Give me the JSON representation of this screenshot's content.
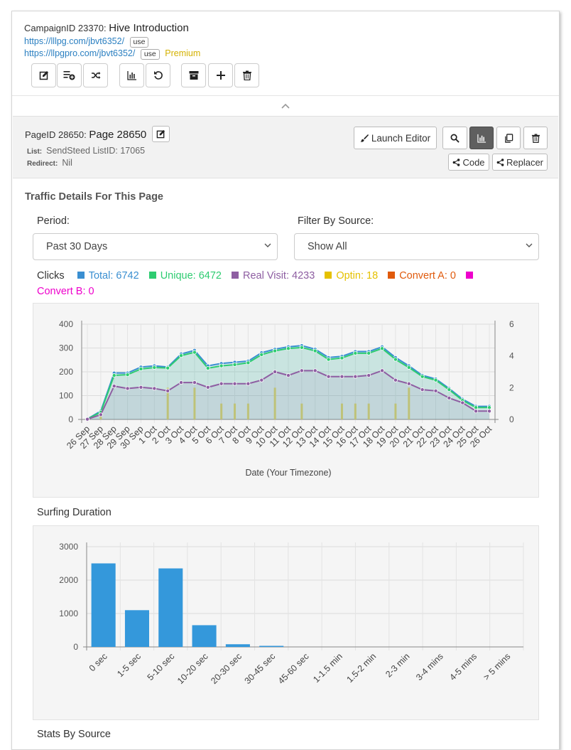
{
  "campaign": {
    "id_label": "CampaignID 23370:",
    "name": "Hive Introduction",
    "url1": "https://lllpg.com/jbvt6352/",
    "url2": "https://llpgpro.com/jbvt6352/",
    "use_label": "use",
    "premium": "Premium",
    "toolbar": [
      "edit-icon",
      "add-list-icon",
      "shuffle-icon",
      "stats-icon",
      "undo-icon",
      "archive-icon",
      "plus-icon",
      "trash-icon"
    ]
  },
  "page": {
    "id_label": "PageID 28650:",
    "name": "Page 28650",
    "list_label": "List:",
    "list_value": "SendSteed ListID: 17065",
    "redirect_label": "Redirect:",
    "redirect_value": "Nil",
    "launch_editor": "Launch Editor",
    "code": "Code",
    "replacer": "Replacer"
  },
  "traffic": {
    "title": "Traffic Details For This Page",
    "period_label": "Period:",
    "period_value": "Past 30 Days",
    "filter_label": "Filter By Source:",
    "filter_value": "Show All"
  },
  "legend": {
    "clicks": "Clicks",
    "items": [
      {
        "text": "Total: 6742",
        "color": "#3a8fd1"
      },
      {
        "text": "Unique: 6472",
        "color": "#2ecc71"
      },
      {
        "text": "Real Visit: 4233",
        "color": "#8e5ea2"
      },
      {
        "text": "Optin: 18",
        "color": "#e5c100"
      },
      {
        "text": "Convert A: 0",
        "color": "#e05a0c"
      },
      {
        "text": "Convert B: 0",
        "color": "#ee00cc"
      }
    ]
  },
  "chart_data": [
    {
      "type": "line",
      "xlabel": "Date (Your Timezone)",
      "x": [
        "26 Sep",
        "27 Sep",
        "28 Sep",
        "29 Sep",
        "30 Sep",
        "1 Oct",
        "2 Oct",
        "3 Oct",
        "4 Oct",
        "5 Oct",
        "6 Oct",
        "7 Oct",
        "8 Oct",
        "9 Oct",
        "10 Oct",
        "11 Oct",
        "12 Oct",
        "13 Oct",
        "14 Oct",
        "15 Oct",
        "16 Oct",
        "17 Oct",
        "18 Oct",
        "19 Oct",
        "20 Oct",
        "21 Oct",
        "22 Oct",
        "23 Oct",
        "24 Oct",
        "25 Oct",
        "26 Oct"
      ],
      "ylim": [
        0,
        400
      ],
      "yticks": [
        0,
        100,
        200,
        300,
        400
      ],
      "y2lim": [
        0,
        6
      ],
      "y2ticks": [
        0,
        2,
        4,
        6
      ],
      "series": [
        {
          "name": "Total",
          "color": "#3a8fd1",
          "values": [
            2,
            35,
            195,
            195,
            220,
            225,
            220,
            275,
            290,
            225,
            235,
            240,
            245,
            280,
            295,
            305,
            310,
            295,
            260,
            265,
            285,
            285,
            305,
            260,
            225,
            185,
            170,
            130,
            85,
            55,
            55
          ]
        },
        {
          "name": "Unique",
          "color": "#2ecc71",
          "values": [
            2,
            30,
            185,
            188,
            212,
            218,
            216,
            268,
            282,
            215,
            225,
            230,
            238,
            272,
            288,
            298,
            302,
            288,
            252,
            258,
            278,
            278,
            298,
            252,
            218,
            180,
            165,
            125,
            80,
            50,
            50
          ]
        },
        {
          "name": "Real Visit",
          "color": "#8e5ea2",
          "values": [
            1,
            20,
            140,
            130,
            135,
            130,
            120,
            155,
            155,
            135,
            150,
            150,
            150,
            165,
            200,
            185,
            205,
            205,
            180,
            180,
            180,
            185,
            205,
            165,
            150,
            125,
            120,
            90,
            70,
            35,
            35
          ]
        },
        {
          "name": "Optin",
          "color": "#e5c100",
          "axis": "right",
          "values": [
            0,
            0.5,
            0,
            0,
            0,
            0,
            2,
            0,
            2,
            0,
            1,
            1,
            1,
            0,
            2,
            0,
            1,
            0,
            0,
            1,
            1,
            1,
            0,
            1,
            2,
            0,
            0,
            0,
            0,
            0,
            0
          ]
        }
      ]
    },
    {
      "type": "bar",
      "title": "Surfing Duration",
      "categories": [
        "0 sec",
        "1-5 sec",
        "5-10 sec",
        "10-20 sec",
        "20-30 sec",
        "30-45 sec",
        "45-60 sec",
        "1-1.5 min",
        "1.5-2 min",
        "2-3 min",
        "3-4 mins",
        "4-5 mins",
        "> 5 mins"
      ],
      "values": [
        2500,
        1100,
        2350,
        650,
        80,
        30,
        0,
        0,
        0,
        0,
        0,
        0,
        0
      ],
      "ylim": [
        0,
        3000
      ],
      "yticks": [
        0,
        1000,
        2000,
        3000
      ],
      "color": "#3498db"
    }
  ],
  "next_section": "Stats By Source"
}
